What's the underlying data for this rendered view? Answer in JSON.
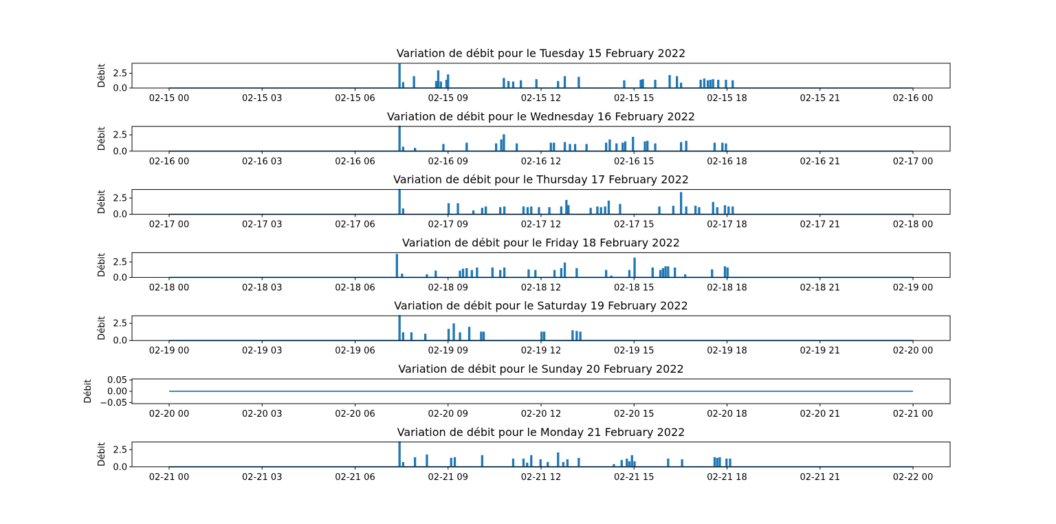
{
  "chart_data": [
    {
      "type": "line",
      "title": "Variation de débit pour le Tuesday 15 February 2022",
      "ylabel": "Débit",
      "xlim": [
        "2022-02-15 00:00",
        "2022-02-16 00:00"
      ],
      "xticks": [
        "02-15 00",
        "02-15 03",
        "02-15 06",
        "02-15 09",
        "02-15 12",
        "02-15 15",
        "02-15 18",
        "02-15 21",
        "02-16 00"
      ],
      "ylim": [
        0,
        4.2
      ],
      "yticks": [
        0.0,
        2.5
      ],
      "ytick_labels": [
        "0.0",
        "2.5"
      ],
      "color": "#1f77b4",
      "spikes": [
        {
          "time": "07:25",
          "value": 4.0
        },
        {
          "time": "07:32",
          "value": 0.9
        },
        {
          "time": "07:53",
          "value": 1.9
        },
        {
          "time": "08:36",
          "value": 1.1
        },
        {
          "time": "08:40",
          "value": 2.9
        },
        {
          "time": "08:45",
          "value": 1.0
        },
        {
          "time": "08:56",
          "value": 1.3
        },
        {
          "time": "08:59",
          "value": 2.2
        },
        {
          "time": "10:47",
          "value": 1.6
        },
        {
          "time": "10:56",
          "value": 1.1
        },
        {
          "time": "11:05",
          "value": 1.0
        },
        {
          "time": "11:20",
          "value": 1.2
        },
        {
          "time": "11:50",
          "value": 1.4
        },
        {
          "time": "12:32",
          "value": 1.1
        },
        {
          "time": "12:45",
          "value": 1.9
        },
        {
          "time": "13:12",
          "value": 1.8
        },
        {
          "time": "14:40",
          "value": 1.2
        },
        {
          "time": "15:12",
          "value": 1.3
        },
        {
          "time": "15:16",
          "value": 1.4
        },
        {
          "time": "15:40",
          "value": 1.3
        },
        {
          "time": "16:08",
          "value": 2.1
        },
        {
          "time": "16:22",
          "value": 1.9
        },
        {
          "time": "16:30",
          "value": 0.8
        },
        {
          "time": "17:08",
          "value": 1.3
        },
        {
          "time": "17:15",
          "value": 1.5
        },
        {
          "time": "17:22",
          "value": 1.2
        },
        {
          "time": "17:27",
          "value": 1.3
        },
        {
          "time": "17:32",
          "value": 1.4
        },
        {
          "time": "17:42",
          "value": 1.3
        },
        {
          "time": "17:57",
          "value": 1.3
        },
        {
          "time": "18:10",
          "value": 1.2
        }
      ]
    },
    {
      "type": "line",
      "title": "Variation de débit pour le Wednesday 16 February 2022",
      "ylabel": "Débit",
      "xlim": [
        "2022-02-16 00:00",
        "2022-02-17 00:00"
      ],
      "xticks": [
        "02-16 00",
        "02-16 03",
        "02-16 06",
        "02-16 09",
        "02-16 12",
        "02-16 15",
        "02-16 18",
        "02-16 21",
        "02-17 00"
      ],
      "ylim": [
        0,
        3.8
      ],
      "yticks": [
        0.0,
        2.5
      ],
      "ytick_labels": [
        "0.0",
        "2.5"
      ],
      "color": "#1f77b4",
      "spikes": [
        {
          "time": "07:25",
          "value": 3.8
        },
        {
          "time": "07:32",
          "value": 0.6
        },
        {
          "time": "07:55",
          "value": 0.4
        },
        {
          "time": "08:50",
          "value": 1.0
        },
        {
          "time": "09:35",
          "value": 1.2
        },
        {
          "time": "10:32",
          "value": 1.1
        },
        {
          "time": "10:42",
          "value": 1.7
        },
        {
          "time": "10:47",
          "value": 2.5
        },
        {
          "time": "11:12",
          "value": 1.1
        },
        {
          "time": "12:18",
          "value": 1.2
        },
        {
          "time": "12:24",
          "value": 1.2
        },
        {
          "time": "12:45",
          "value": 1.3
        },
        {
          "time": "12:55",
          "value": 1.0
        },
        {
          "time": "13:05",
          "value": 1.0
        },
        {
          "time": "13:27",
          "value": 1.0
        },
        {
          "time": "14:05",
          "value": 1.2
        },
        {
          "time": "14:12",
          "value": 1.7
        },
        {
          "time": "14:25",
          "value": 1.1
        },
        {
          "time": "14:37",
          "value": 1.2
        },
        {
          "time": "14:42",
          "value": 1.4
        },
        {
          "time": "14:57",
          "value": 2.1
        },
        {
          "time": "15:20",
          "value": 1.4
        },
        {
          "time": "15:25",
          "value": 1.5
        },
        {
          "time": "15:40",
          "value": 1.1
        },
        {
          "time": "16:30",
          "value": 1.3
        },
        {
          "time": "16:40",
          "value": 1.5
        },
        {
          "time": "17:35",
          "value": 1.2
        },
        {
          "time": "17:50",
          "value": 1.2
        },
        {
          "time": "17:57",
          "value": 1.1
        }
      ]
    },
    {
      "type": "line",
      "title": "Variation de débit pour le Thursday 17 February 2022",
      "ylabel": "Débit",
      "xlim": [
        "2022-02-17 00:00",
        "2022-02-18 00:00"
      ],
      "xticks": [
        "02-17 00",
        "02-17 03",
        "02-17 06",
        "02-17 09",
        "02-17 12",
        "02-17 15",
        "02-17 18",
        "02-17 21",
        "02-18 00"
      ],
      "ylim": [
        0,
        3.8
      ],
      "yticks": [
        0.0,
        2.5
      ],
      "ytick_labels": [
        "0.0",
        "2.5"
      ],
      "color": "#1f77b4",
      "spikes": [
        {
          "time": "07:25",
          "value": 3.8
        },
        {
          "time": "07:32",
          "value": 0.8
        },
        {
          "time": "09:00",
          "value": 1.6
        },
        {
          "time": "09:18",
          "value": 1.6
        },
        {
          "time": "09:48",
          "value": 0.5
        },
        {
          "time": "10:05",
          "value": 0.9
        },
        {
          "time": "10:12",
          "value": 1.1
        },
        {
          "time": "10:40",
          "value": 1.0
        },
        {
          "time": "10:48",
          "value": 1.1
        },
        {
          "time": "11:25",
          "value": 1.1
        },
        {
          "time": "11:33",
          "value": 1.0
        },
        {
          "time": "11:40",
          "value": 1.1
        },
        {
          "time": "11:55",
          "value": 1.0
        },
        {
          "time": "12:15",
          "value": 1.0
        },
        {
          "time": "12:38",
          "value": 1.1
        },
        {
          "time": "12:48",
          "value": 2.1
        },
        {
          "time": "12:52",
          "value": 1.3
        },
        {
          "time": "13:35",
          "value": 0.9
        },
        {
          "time": "13:48",
          "value": 1.1
        },
        {
          "time": "13:55",
          "value": 1.0
        },
        {
          "time": "14:03",
          "value": 1.1
        },
        {
          "time": "14:10",
          "value": 2.0
        },
        {
          "time": "14:32",
          "value": 1.5
        },
        {
          "time": "15:48",
          "value": 1.1
        },
        {
          "time": "16:15",
          "value": 1.2
        },
        {
          "time": "16:30",
          "value": 3.3
        },
        {
          "time": "16:40",
          "value": 1.1
        },
        {
          "time": "16:58",
          "value": 1.2
        },
        {
          "time": "17:05",
          "value": 1.0
        },
        {
          "time": "17:32",
          "value": 1.8
        },
        {
          "time": "17:40",
          "value": 1.0
        },
        {
          "time": "17:55",
          "value": 1.3
        },
        {
          "time": "18:02",
          "value": 1.1
        },
        {
          "time": "18:10",
          "value": 1.1
        }
      ]
    },
    {
      "type": "line",
      "title": "Variation de débit pour le Friday 18 February 2022",
      "ylabel": "Débit",
      "xlim": [
        "2022-02-18 00:00",
        "2022-02-19 00:00"
      ],
      "xticks": [
        "02-18 00",
        "02-18 03",
        "02-18 06",
        "02-18 09",
        "02-18 12",
        "02-18 15",
        "02-18 18",
        "02-18 21",
        "02-19 00"
      ],
      "ylim": [
        0,
        4.0
      ],
      "yticks": [
        0.0,
        2.5
      ],
      "ytick_labels": [
        "0.0",
        "2.5"
      ],
      "color": "#1f77b4",
      "spikes": [
        {
          "time": "07:20",
          "value": 3.7
        },
        {
          "time": "07:30",
          "value": 0.5
        },
        {
          "time": "08:18",
          "value": 0.4
        },
        {
          "time": "08:35",
          "value": 1.0
        },
        {
          "time": "09:22",
          "value": 1.0
        },
        {
          "time": "09:28",
          "value": 1.3
        },
        {
          "time": "09:35",
          "value": 1.4
        },
        {
          "time": "09:45",
          "value": 1.1
        },
        {
          "time": "09:55",
          "value": 1.5
        },
        {
          "time": "10:25",
          "value": 1.5
        },
        {
          "time": "10:40",
          "value": 1.1
        },
        {
          "time": "10:48",
          "value": 1.5
        },
        {
          "time": "11:35",
          "value": 1.2
        },
        {
          "time": "11:48",
          "value": 1.1
        },
        {
          "time": "12:25",
          "value": 1.1
        },
        {
          "time": "12:38",
          "value": 1.4
        },
        {
          "time": "12:45",
          "value": 2.3
        },
        {
          "time": "13:08",
          "value": 1.4
        },
        {
          "time": "14:05",
          "value": 1.1
        },
        {
          "time": "14:15",
          "value": 0.2
        },
        {
          "time": "14:50",
          "value": 1.1
        },
        {
          "time": "15:00",
          "value": 3.1
        },
        {
          "time": "15:35",
          "value": 1.5
        },
        {
          "time": "15:50",
          "value": 1.1
        },
        {
          "time": "15:55",
          "value": 1.4
        },
        {
          "time": "16:00",
          "value": 1.7
        },
        {
          "time": "16:05",
          "value": 1.7
        },
        {
          "time": "16:18",
          "value": 1.5
        },
        {
          "time": "16:38",
          "value": 0.4
        },
        {
          "time": "17:30",
          "value": 1.2
        },
        {
          "time": "17:55",
          "value": 1.7
        },
        {
          "time": "18:00",
          "value": 1.5
        }
      ]
    },
    {
      "type": "line",
      "title": "Variation de débit pour le Saturday 19 February 2022",
      "ylabel": "Débit",
      "xlim": [
        "2022-02-19 00:00",
        "2022-02-20 00:00"
      ],
      "xticks": [
        "02-19 00",
        "02-19 03",
        "02-19 06",
        "02-19 09",
        "02-19 12",
        "02-19 15",
        "02-19 18",
        "02-19 21",
        "02-20 00"
      ],
      "ylim": [
        0,
        3.6
      ],
      "yticks": [
        0.0,
        2.5
      ],
      "ytick_labels": [
        "0.0",
        "2.5"
      ],
      "color": "#1f77b4",
      "spikes": [
        {
          "time": "07:25",
          "value": 3.6
        },
        {
          "time": "07:32",
          "value": 1.1
        },
        {
          "time": "07:48",
          "value": 1.1
        },
        {
          "time": "08:15",
          "value": 0.9
        },
        {
          "time": "09:00",
          "value": 1.6
        },
        {
          "time": "09:10",
          "value": 2.4
        },
        {
          "time": "09:22",
          "value": 1.1
        },
        {
          "time": "09:40",
          "value": 1.9
        },
        {
          "time": "10:03",
          "value": 1.2
        },
        {
          "time": "10:08",
          "value": 1.2
        },
        {
          "time": "12:00",
          "value": 1.2
        },
        {
          "time": "12:05",
          "value": 1.2
        },
        {
          "time": "13:00",
          "value": 1.4
        },
        {
          "time": "13:08",
          "value": 1.3
        },
        {
          "time": "13:15",
          "value": 1.2
        }
      ]
    },
    {
      "type": "line",
      "title": "Variation de débit pour le Sunday 20 February 2022",
      "ylabel": "Débit",
      "xlim": [
        "2022-02-20 00:00",
        "2022-02-21 00:00"
      ],
      "xticks": [
        "02-20 00",
        "02-20 03",
        "02-20 06",
        "02-20 09",
        "02-20 12",
        "02-20 15",
        "02-20 18",
        "02-20 21",
        "02-21 00"
      ],
      "ylim": [
        -0.055,
        0.055
      ],
      "yticks": [
        -0.05,
        0.0,
        0.05
      ],
      "ytick_labels": [
        "−0.05",
        "0.00",
        "0.05"
      ],
      "color": "#1f77b4",
      "spikes": []
    },
    {
      "type": "line",
      "title": "Variation de débit pour le Monday 21 February 2022",
      "ylabel": "Débit",
      "xlim": [
        "2022-02-21 00:00",
        "2022-02-22 00:00"
      ],
      "xticks": [
        "02-21 00",
        "02-21 03",
        "02-21 06",
        "02-21 09",
        "02-21 12",
        "02-21 15",
        "02-21 18",
        "02-21 21",
        "02-22 00"
      ],
      "ylim": [
        0,
        3.6
      ],
      "yticks": [
        0.0,
        2.5
      ],
      "ytick_labels": [
        "0.0",
        "2.5"
      ],
      "color": "#1f77b4",
      "spikes": [
        {
          "time": "07:25",
          "value": 3.6
        },
        {
          "time": "07:32",
          "value": 0.6
        },
        {
          "time": "07:55",
          "value": 1.3
        },
        {
          "time": "08:18",
          "value": 1.7
        },
        {
          "time": "09:05",
          "value": 1.2
        },
        {
          "time": "09:12",
          "value": 1.3
        },
        {
          "time": "10:05",
          "value": 1.6
        },
        {
          "time": "11:05",
          "value": 1.1
        },
        {
          "time": "11:25",
          "value": 1.1
        },
        {
          "time": "11:32",
          "value": 0.5
        },
        {
          "time": "11:40",
          "value": 1.6
        },
        {
          "time": "11:58",
          "value": 1.0
        },
        {
          "time": "12:12",
          "value": 0.6
        },
        {
          "time": "12:32",
          "value": 2.0
        },
        {
          "time": "12:42",
          "value": 0.6
        },
        {
          "time": "12:50",
          "value": 1.0
        },
        {
          "time": "13:12",
          "value": 1.2
        },
        {
          "time": "14:20",
          "value": 0.3
        },
        {
          "time": "14:35",
          "value": 0.9
        },
        {
          "time": "14:45",
          "value": 1.1
        },
        {
          "time": "14:50",
          "value": 0.7
        },
        {
          "time": "14:55",
          "value": 1.6
        },
        {
          "time": "15:00",
          "value": 0.7
        },
        {
          "time": "16:05",
          "value": 1.1
        },
        {
          "time": "16:32",
          "value": 1.0
        },
        {
          "time": "17:35",
          "value": 1.3
        },
        {
          "time": "17:40",
          "value": 1.2
        },
        {
          "time": "17:45",
          "value": 1.3
        },
        {
          "time": "17:58",
          "value": 1.1
        },
        {
          "time": "18:05",
          "value": 1.1
        }
      ]
    }
  ]
}
